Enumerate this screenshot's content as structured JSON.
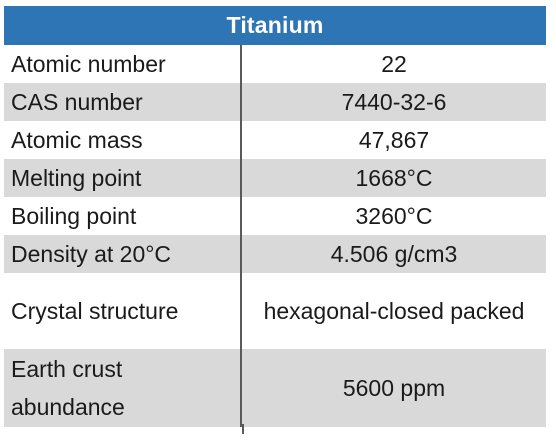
{
  "table": {
    "title": "Titanium",
    "rows": [
      {
        "label": "Atomic number",
        "value": "22"
      },
      {
        "label": "CAS number",
        "value": "7440-32-6"
      },
      {
        "label": "Atomic mass",
        "value": "47,867"
      },
      {
        "label": "Melting point",
        "value": "1668°C"
      },
      {
        "label": "Boiling point",
        "value": "3260°C"
      },
      {
        "label": "Density at 20°C",
        "value": "4.506 g/cm3"
      },
      {
        "label": "Crystal structure",
        "value": "hexagonal-closed packed"
      },
      {
        "label": "Earth crust\nabundance",
        "value": "5600 ppm"
      }
    ]
  },
  "colors": {
    "header_bg": "#2e75b6",
    "header_text": "#ffffff",
    "row_shade": "#d9d9d9"
  }
}
